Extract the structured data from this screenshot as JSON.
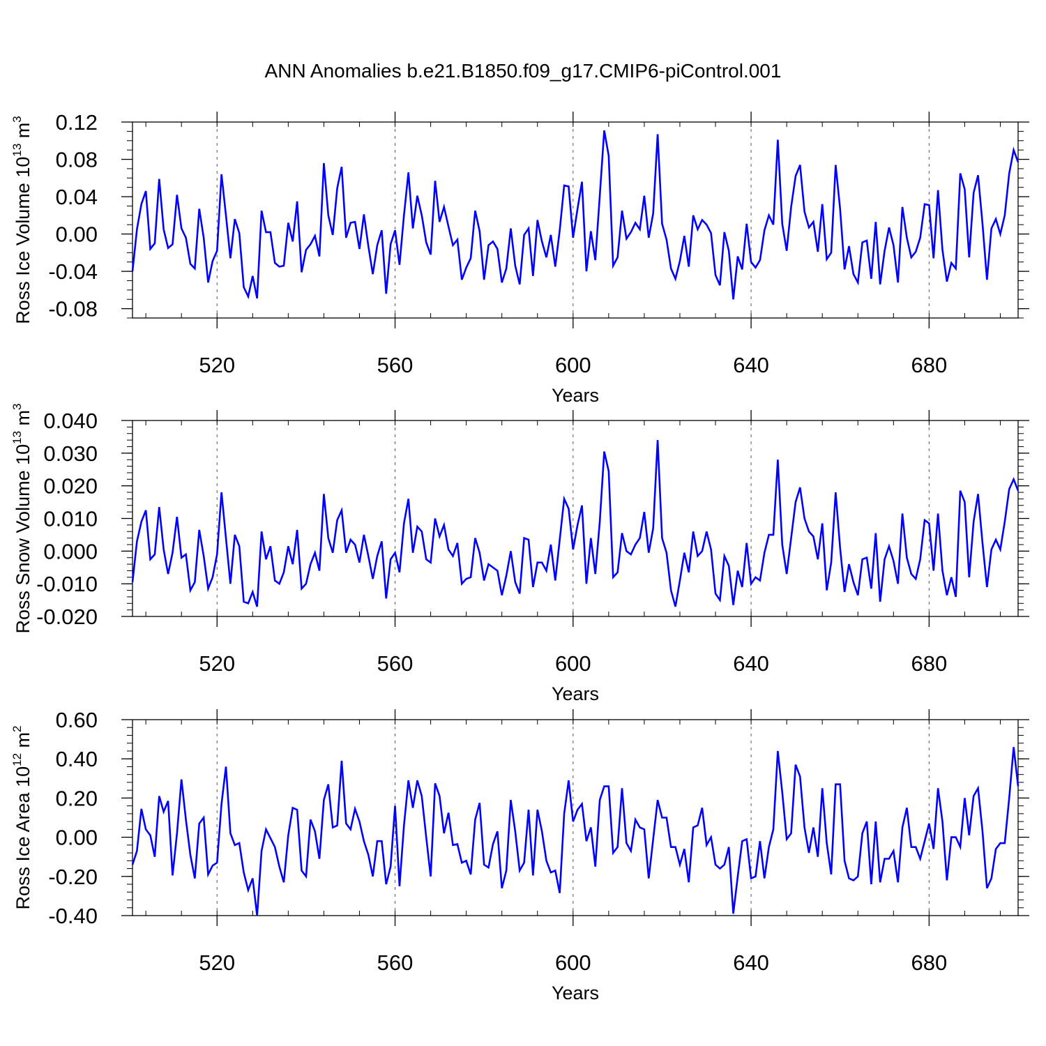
{
  "title": "ANN Anomalies b.e21.B1850.f09_g17.CMIP6-piControl.001",
  "line_color": "#0000ff",
  "chart_data": [
    {
      "type": "line",
      "ylabel": "Ross Ice Volume",
      "yunit_base": "10",
      "yunit_exp": "13",
      "yunit_tail": " m",
      "yunit_tail_exp": "3",
      "xlabel": "Years",
      "xlim": [
        501,
        700
      ],
      "ylim": [
        -0.09,
        0.12
      ],
      "yticks": [
        -0.08,
        -0.04,
        0.0,
        0.04,
        0.08,
        0.12
      ],
      "ytick_labels": [
        "-0.08",
        "-0.04",
        "0.00",
        "0.04",
        "0.08",
        "0.12"
      ],
      "ymajor_step": 0.04,
      "yminor_step": 0.01,
      "xticks": [
        520,
        560,
        600,
        640,
        680
      ],
      "xtick_labels": [
        "520",
        "560",
        "600",
        "640",
        "680"
      ],
      "xminor_step": 8,
      "grid": "vertical dashed at x ticks",
      "values": [
        -0.04,
        0.005,
        0.032,
        0.046,
        -0.016,
        -0.01,
        0.059,
        0.005,
        -0.015,
        -0.011,
        0.042,
        0.006,
        -0.004,
        -0.032,
        -0.037,
        0.027,
        -0.004,
        -0.052,
        -0.029,
        -0.018,
        0.064,
        0.02,
        -0.026,
        0.016,
        0.001,
        -0.057,
        -0.067,
        -0.045,
        -0.069,
        0.025,
        0.002,
        0.002,
        -0.031,
        -0.035,
        -0.034,
        0.012,
        -0.008,
        0.035,
        -0.041,
        -0.017,
        -0.011,
        -0.002,
        -0.024,
        0.076,
        0.02,
        -0.001,
        0.049,
        0.072,
        -0.004,
        0.012,
        0.013,
        -0.016,
        0.021,
        -0.013,
        -0.043,
        -0.012,
        0.004,
        -0.064,
        -0.011,
        0.004,
        -0.033,
        0.02,
        0.066,
        0.006,
        0.041,
        0.02,
        -0.009,
        -0.022,
        0.057,
        0.013,
        0.029,
        0.008,
        -0.012,
        -0.006,
        -0.049,
        -0.036,
        -0.026,
        0.025,
        0.003,
        -0.049,
        -0.012,
        -0.008,
        -0.016,
        -0.052,
        -0.037,
        0.006,
        -0.034,
        -0.054,
        -0.001,
        0.006,
        -0.045,
        0.015,
        -0.008,
        -0.025,
        -0.001,
        -0.035,
        0.004,
        0.052,
        0.051,
        -0.004,
        0.027,
        0.056,
        -0.04,
        0.003,
        -0.028,
        0.041,
        0.111,
        0.084,
        -0.034,
        -0.025,
        0.025,
        -0.005,
        0.002,
        0.012,
        0.005,
        0.041,
        -0.004,
        0.022,
        0.107,
        0.011,
        -0.006,
        -0.037,
        -0.048,
        -0.029,
        -0.002,
        -0.035,
        0.02,
        0.005,
        0.015,
        0.01,
        0.001,
        -0.044,
        -0.055,
        0.002,
        -0.018,
        -0.07,
        -0.024,
        -0.038,
        0.011,
        -0.03,
        -0.036,
        -0.028,
        0.004,
        0.02,
        0.01,
        0.101,
        0.011,
        -0.018,
        0.029,
        0.062,
        0.074,
        0.024,
        0.007,
        0.013,
        -0.019,
        0.032,
        -0.027,
        -0.02,
        0.074,
        0.027,
        -0.038,
        -0.013,
        -0.043,
        -0.052,
        -0.009,
        -0.007,
        -0.048,
        0.013,
        -0.054,
        -0.018,
        0.007,
        -0.012,
        -0.052,
        0.029,
        -0.004,
        -0.025,
        -0.019,
        -0.004,
        0.032,
        0.031,
        -0.026,
        0.047,
        -0.017,
        -0.051,
        -0.031,
        -0.037,
        0.065,
        0.048,
        -0.025,
        0.044,
        0.063,
        0.011,
        -0.049,
        0.006,
        0.016,
        0.0,
        0.02,
        0.065,
        0.09,
        0.077
      ]
    },
    {
      "type": "line",
      "ylabel": "Ross Snow Volume",
      "yunit_base": "10",
      "yunit_exp": "13",
      "yunit_tail": " m",
      "yunit_tail_exp": "3",
      "xlabel": "Years",
      "xlim": [
        501,
        700
      ],
      "ylim": [
        -0.02,
        0.04
      ],
      "yticks": [
        -0.02,
        -0.01,
        0.0,
        0.01,
        0.02,
        0.03,
        0.04
      ],
      "ytick_labels": [
        "-0.020",
        "-0.010",
        "0.000",
        "0.010",
        "0.020",
        "0.030",
        "0.040"
      ],
      "ymajor_step": 0.01,
      "yminor_step": 0.002,
      "xticks": [
        520,
        560,
        600,
        640,
        680
      ],
      "xtick_labels": [
        "520",
        "560",
        "600",
        "640",
        "680"
      ],
      "xminor_step": 8,
      "grid": "vertical dashed at x ticks",
      "values": [
        -0.0095,
        0.003,
        0.009,
        0.0125,
        -0.0025,
        -0.001,
        0.0135,
        0.0005,
        -0.007,
        -0.0005,
        0.0105,
        -0.002,
        -0.001,
        -0.012,
        -0.0095,
        0.0065,
        -0.0015,
        -0.0115,
        -0.008,
        -0.001,
        0.018,
        0.004,
        -0.01,
        0.005,
        0.0015,
        -0.0155,
        -0.016,
        -0.0125,
        -0.017,
        0.006,
        -0.0025,
        0.0015,
        -0.009,
        -0.01,
        -0.0065,
        0.0015,
        -0.004,
        0.0065,
        -0.0115,
        -0.01,
        -0.004,
        -0.0005,
        -0.006,
        0.0175,
        0.004,
        -0.0005,
        0.0095,
        0.0125,
        -0.0005,
        0.0035,
        0.002,
        -0.0035,
        0.005,
        -0.0015,
        -0.0085,
        -0.0015,
        0.003,
        -0.0145,
        -0.0025,
        -0.0005,
        -0.0065,
        0.0085,
        0.016,
        -0.0005,
        0.0075,
        0.006,
        -0.0025,
        -0.0035,
        0.01,
        0.0045,
        0.008,
        0.0005,
        -0.0015,
        0.0025,
        -0.01,
        -0.0085,
        -0.008,
        0.004,
        -0.0005,
        -0.009,
        -0.004,
        -0.005,
        -0.006,
        -0.0135,
        -0.0075,
        0.0,
        -0.0095,
        -0.013,
        0.004,
        0.0035,
        -0.011,
        -0.0035,
        -0.0035,
        -0.006,
        0.002,
        -0.009,
        0.0035,
        0.016,
        0.013,
        0.0005,
        0.008,
        0.014,
        -0.01,
        0.004,
        -0.007,
        0.009,
        0.0305,
        0.0245,
        -0.008,
        -0.0065,
        0.0055,
        0.0,
        -0.001,
        0.002,
        0.004,
        0.012,
        -0.0005,
        0.007,
        0.034,
        0.004,
        -0.0005,
        -0.012,
        -0.017,
        -0.009,
        -0.0005,
        -0.0065,
        0.006,
        -0.0015,
        0.0,
        0.006,
        0.0005,
        -0.013,
        -0.015,
        -0.0015,
        -0.0045,
        -0.0165,
        -0.006,
        -0.011,
        0.0025,
        -0.01,
        -0.008,
        -0.009,
        -0.0005,
        0.005,
        0.005,
        0.028,
        0.002,
        -0.007,
        0.004,
        0.015,
        0.0195,
        0.01,
        0.006,
        0.0045,
        -0.0025,
        0.0085,
        -0.012,
        -0.0035,
        0.018,
        0.001,
        -0.0125,
        -0.004,
        -0.0095,
        -0.0135,
        -0.0025,
        -0.002,
        -0.0115,
        0.0055,
        -0.0155,
        -0.0025,
        0.0015,
        -0.003,
        -0.01,
        0.0115,
        -0.002,
        -0.007,
        -0.0085,
        -0.0025,
        0.0095,
        0.0085,
        -0.006,
        0.0115,
        -0.006,
        -0.0135,
        -0.008,
        -0.014,
        0.0185,
        0.015,
        -0.008,
        0.009,
        0.0175,
        0.0025,
        -0.011,
        0.0005,
        0.0035,
        0.0005,
        0.009,
        0.019,
        0.022,
        0.0185
      ]
    },
    {
      "type": "line",
      "ylabel": "Ross Ice Area",
      "yunit_base": "10",
      "yunit_exp": "12",
      "yunit_tail": " m",
      "yunit_tail_exp": "2",
      "xlabel": "Years",
      "xlim": [
        501,
        700
      ],
      "ylim": [
        -0.4,
        0.6
      ],
      "yticks": [
        -0.4,
        -0.2,
        0.0,
        0.2,
        0.4,
        0.6
      ],
      "ytick_labels": [
        "-0.40",
        "-0.20",
        "0.00",
        "0.20",
        "0.40",
        "0.60"
      ],
      "ymajor_step": 0.2,
      "yminor_step": 0.04,
      "xticks": [
        520,
        560,
        600,
        640,
        680
      ],
      "xtick_labels": [
        "520",
        "560",
        "600",
        "640",
        "680"
      ],
      "xminor_step": 8,
      "grid": "vertical dashed at x ticks",
      "values": [
        -0.14,
        -0.07,
        0.145,
        0.04,
        0.01,
        -0.1,
        0.21,
        0.13,
        0.185,
        -0.195,
        0.02,
        0.295,
        0.09,
        -0.09,
        -0.21,
        0.07,
        0.1,
        -0.19,
        -0.145,
        -0.13,
        0.17,
        0.36,
        0.02,
        -0.04,
        -0.03,
        -0.18,
        -0.27,
        -0.21,
        -0.4,
        -0.07,
        0.04,
        -0.005,
        -0.05,
        -0.15,
        -0.23,
        0.01,
        0.15,
        0.14,
        -0.17,
        -0.2,
        0.09,
        0.03,
        -0.11,
        0.19,
        0.27,
        0.05,
        0.06,
        0.39,
        0.07,
        0.04,
        0.145,
        0.08,
        -0.02,
        -0.09,
        -0.2,
        -0.02,
        -0.02,
        -0.24,
        -0.15,
        0.16,
        -0.25,
        0.06,
        0.29,
        0.15,
        0.29,
        0.21,
        0.0,
        -0.2,
        0.275,
        0.21,
        0.02,
        0.125,
        -0.04,
        -0.035,
        -0.13,
        -0.12,
        -0.19,
        0.09,
        0.175,
        -0.14,
        -0.155,
        -0.035,
        0.03,
        -0.26,
        -0.17,
        0.19,
        0.03,
        -0.17,
        -0.13,
        0.14,
        -0.195,
        0.14,
        0.03,
        -0.12,
        -0.18,
        -0.17,
        -0.285,
        0.12,
        0.29,
        0.08,
        0.14,
        0.17,
        -0.02,
        0.05,
        -0.15,
        0.19,
        0.26,
        0.26,
        -0.08,
        -0.05,
        0.25,
        -0.03,
        -0.07,
        0.09,
        0.05,
        0.04,
        -0.21,
        -0.01,
        0.19,
        0.1,
        0.1,
        -0.05,
        -0.05,
        -0.14,
        -0.06,
        -0.23,
        0.05,
        0.06,
        0.15,
        -0.04,
        0.0,
        -0.14,
        -0.16,
        -0.14,
        -0.05,
        -0.39,
        -0.2,
        -0.02,
        -0.01,
        -0.21,
        -0.2,
        -0.02,
        -0.21,
        -0.05,
        0.04,
        0.44,
        0.23,
        -0.01,
        0.02,
        0.37,
        0.31,
        0.05,
        -0.08,
        0.05,
        -0.1,
        0.25,
        -0.03,
        -0.19,
        0.27,
        0.27,
        -0.12,
        -0.21,
        -0.22,
        -0.2,
        0.02,
        0.08,
        -0.24,
        0.08,
        -0.23,
        -0.11,
        -0.11,
        -0.07,
        -0.23,
        0.05,
        0.15,
        -0.05,
        -0.05,
        -0.11,
        -0.02,
        0.07,
        -0.06,
        0.25,
        0.08,
        -0.22,
        0.0,
        0.0,
        -0.05,
        0.2,
        0.01,
        0.21,
        0.25,
        0.03,
        -0.26,
        -0.21,
        -0.06,
        -0.03,
        -0.03,
        0.2,
        0.46,
        0.26
      ]
    }
  ]
}
